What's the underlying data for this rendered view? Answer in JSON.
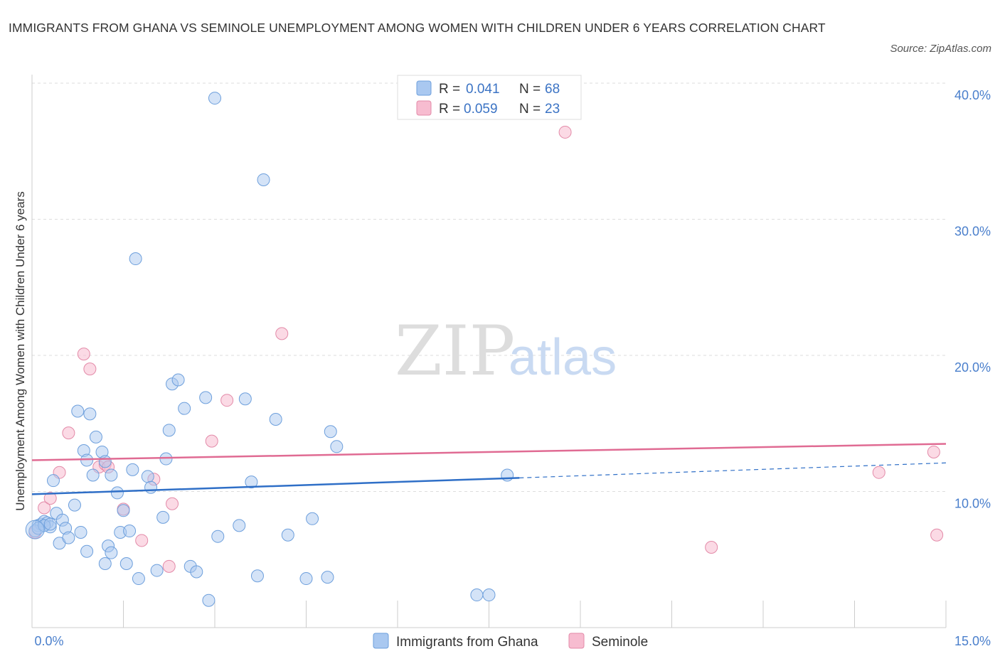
{
  "title": "IMMIGRANTS FROM GHANA VS SEMINOLE UNEMPLOYMENT AMONG WOMEN WITH CHILDREN UNDER 6 YEARS CORRELATION CHART",
  "source": "Source: ZipAtlas.com",
  "watermark": {
    "zip": "ZIP",
    "atlas": "atlas"
  },
  "colors": {
    "ghana": "#a9c8f0",
    "ghana_edge": "#6d9fdc",
    "ghana_line": "#2f6fc7",
    "seminole": "#f7bcd0",
    "seminole_edge": "#e38aa8",
    "seminole_line": "#e06b93",
    "tick": "#4a7fcc"
  },
  "legend_stats": [
    {
      "r_label": "R =",
      "r_value": "0.041",
      "n_label": "N =",
      "n_value": "68"
    },
    {
      "r_label": "R =",
      "r_value": "0.059",
      "n_label": "N =",
      "n_value": "23"
    }
  ],
  "chart_data": {
    "type": "scatter",
    "title": "IMMIGRANTS FROM GHANA VS SEMINOLE UNEMPLOYMENT AMONG WOMEN WITH CHILDREN UNDER 6 YEARS CORRELATION CHART",
    "xlabel": "",
    "ylabel": "Unemployment Among Women with Children Under 6 years",
    "xlim": [
      0,
      15
    ],
    "ylim": [
      0,
      40
    ],
    "x_tick_labels": [
      "0.0%",
      "15.0%"
    ],
    "y_ticks": [
      10,
      20,
      30,
      40
    ],
    "y_tick_labels": [
      "10.0%",
      "20.0%",
      "30.0%",
      "40.0%"
    ],
    "grid": true,
    "legend_position": "bottom",
    "series": [
      {
        "name": "Immigrants from Ghana",
        "color": "#a9c8f0",
        "trend": {
          "x": [
            0,
            8
          ],
          "y": [
            9.8,
            11.0
          ],
          "dashed_to": [
            15,
            12.1
          ]
        },
        "points": [
          [
            0.1,
            7.5
          ],
          [
            0.15,
            7.6
          ],
          [
            0.2,
            7.8
          ],
          [
            0.25,
            7.7
          ],
          [
            0.3,
            7.4
          ],
          [
            0.35,
            10.8
          ],
          [
            0.4,
            8.4
          ],
          [
            0.45,
            6.2
          ],
          [
            0.5,
            7.9
          ],
          [
            0.55,
            7.3
          ],
          [
            0.6,
            6.6
          ],
          [
            0.7,
            9.0
          ],
          [
            0.8,
            7.0
          ],
          [
            0.9,
            5.6
          ],
          [
            0.75,
            15.9
          ],
          [
            0.95,
            15.7
          ],
          [
            0.85,
            13.0
          ],
          [
            0.9,
            12.3
          ],
          [
            1.0,
            11.2
          ],
          [
            1.05,
            14.0
          ],
          [
            1.15,
            12.9
          ],
          [
            1.2,
            4.7
          ],
          [
            1.25,
            6.0
          ],
          [
            1.3,
            5.5
          ],
          [
            1.2,
            12.2
          ],
          [
            1.3,
            11.2
          ],
          [
            1.4,
            9.9
          ],
          [
            1.45,
            7.0
          ],
          [
            1.5,
            8.6
          ],
          [
            1.55,
            4.7
          ],
          [
            1.6,
            7.1
          ],
          [
            1.65,
            11.6
          ],
          [
            1.7,
            27.1
          ],
          [
            1.75,
            3.6
          ],
          [
            1.9,
            11.1
          ],
          [
            1.95,
            10.3
          ],
          [
            2.05,
            4.2
          ],
          [
            2.15,
            8.1
          ],
          [
            2.2,
            12.4
          ],
          [
            2.25,
            14.5
          ],
          [
            2.3,
            17.9
          ],
          [
            2.4,
            18.2
          ],
          [
            2.5,
            16.1
          ],
          [
            2.6,
            4.5
          ],
          [
            2.7,
            4.1
          ],
          [
            2.85,
            16.9
          ],
          [
            2.9,
            2.0
          ],
          [
            3.0,
            38.9
          ],
          [
            3.05,
            6.7
          ],
          [
            3.4,
            7.5
          ],
          [
            3.5,
            16.8
          ],
          [
            3.6,
            10.7
          ],
          [
            3.7,
            3.8
          ],
          [
            3.8,
            32.9
          ],
          [
            4.0,
            15.3
          ],
          [
            4.2,
            6.8
          ],
          [
            4.5,
            3.6
          ],
          [
            4.6,
            8.0
          ],
          [
            4.85,
            3.7
          ],
          [
            4.9,
            14.4
          ],
          [
            5.0,
            13.3
          ],
          [
            7.3,
            2.4
          ],
          [
            7.5,
            2.4
          ],
          [
            7.8,
            11.2
          ],
          [
            0.05,
            7.1
          ],
          [
            0.1,
            7.3
          ],
          [
            0.2,
            7.5
          ],
          [
            0.3,
            7.6
          ]
        ]
      },
      {
        "name": "Seminole",
        "color": "#f7bcd0",
        "trend": {
          "x": [
            0,
            15
          ],
          "y": [
            12.3,
            13.5
          ]
        },
        "points": [
          [
            0.05,
            7.0
          ],
          [
            0.2,
            8.8
          ],
          [
            0.3,
            9.5
          ],
          [
            0.45,
            11.4
          ],
          [
            0.6,
            14.3
          ],
          [
            0.85,
            20.1
          ],
          [
            0.95,
            19.0
          ],
          [
            1.1,
            11.8
          ],
          [
            1.2,
            12.0
          ],
          [
            1.25,
            11.8
          ],
          [
            1.5,
            8.7
          ],
          [
            1.8,
            6.4
          ],
          [
            2.0,
            10.9
          ],
          [
            2.25,
            4.5
          ],
          [
            2.3,
            9.1
          ],
          [
            2.95,
            13.7
          ],
          [
            3.2,
            16.7
          ],
          [
            4.1,
            21.6
          ],
          [
            8.75,
            36.4
          ],
          [
            11.15,
            5.9
          ],
          [
            13.9,
            11.4
          ],
          [
            14.8,
            12.9
          ],
          [
            14.85,
            6.8
          ]
        ]
      }
    ]
  }
}
